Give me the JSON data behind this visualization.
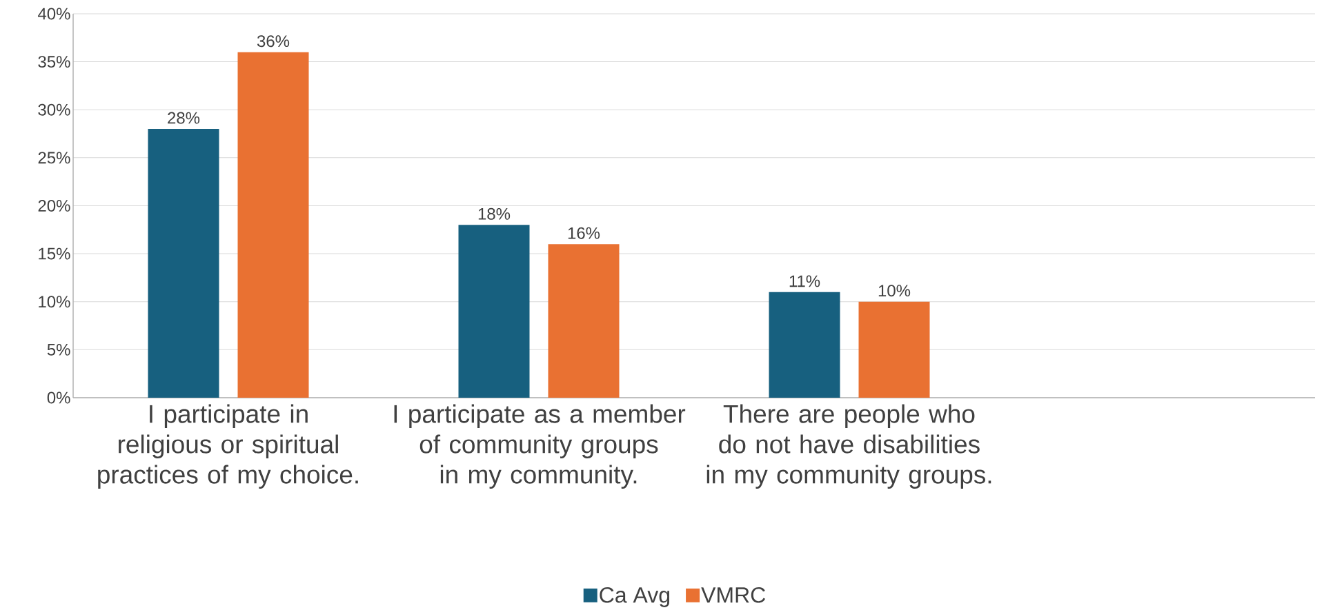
{
  "chart_data": {
    "type": "bar",
    "categories": [
      "I participate in religious or spiritual practices of my choice.",
      "I participate as a member of community groups in my community.",
      "There are people who do not have disabilities in my community groups.",
      null
    ],
    "series": [
      {
        "name": "Ca Avg",
        "color": "#17607f",
        "values": [
          28,
          18,
          11,
          null
        ],
        "value_labels": [
          "28%",
          "18%",
          "11%",
          null
        ]
      },
      {
        "name": "VMRC",
        "color": "#e97132",
        "values": [
          36,
          16,
          10,
          null
        ],
        "value_labels": [
          "36%",
          "16%",
          "10%",
          null
        ]
      }
    ],
    "ylim": [
      0,
      40
    ],
    "yticks": [
      {
        "value": 0,
        "label": "0%"
      },
      {
        "value": 5,
        "label": "5%"
      },
      {
        "value": 10,
        "label": "10%"
      },
      {
        "value": 15,
        "label": "15%"
      },
      {
        "value": 20,
        "label": "20%"
      },
      {
        "value": 25,
        "label": "25%"
      },
      {
        "value": 30,
        "label": "30%"
      },
      {
        "value": 35,
        "label": "35%"
      },
      {
        "value": 40,
        "label": "40%"
      }
    ],
    "grid": "y",
    "legend": "bottom"
  }
}
